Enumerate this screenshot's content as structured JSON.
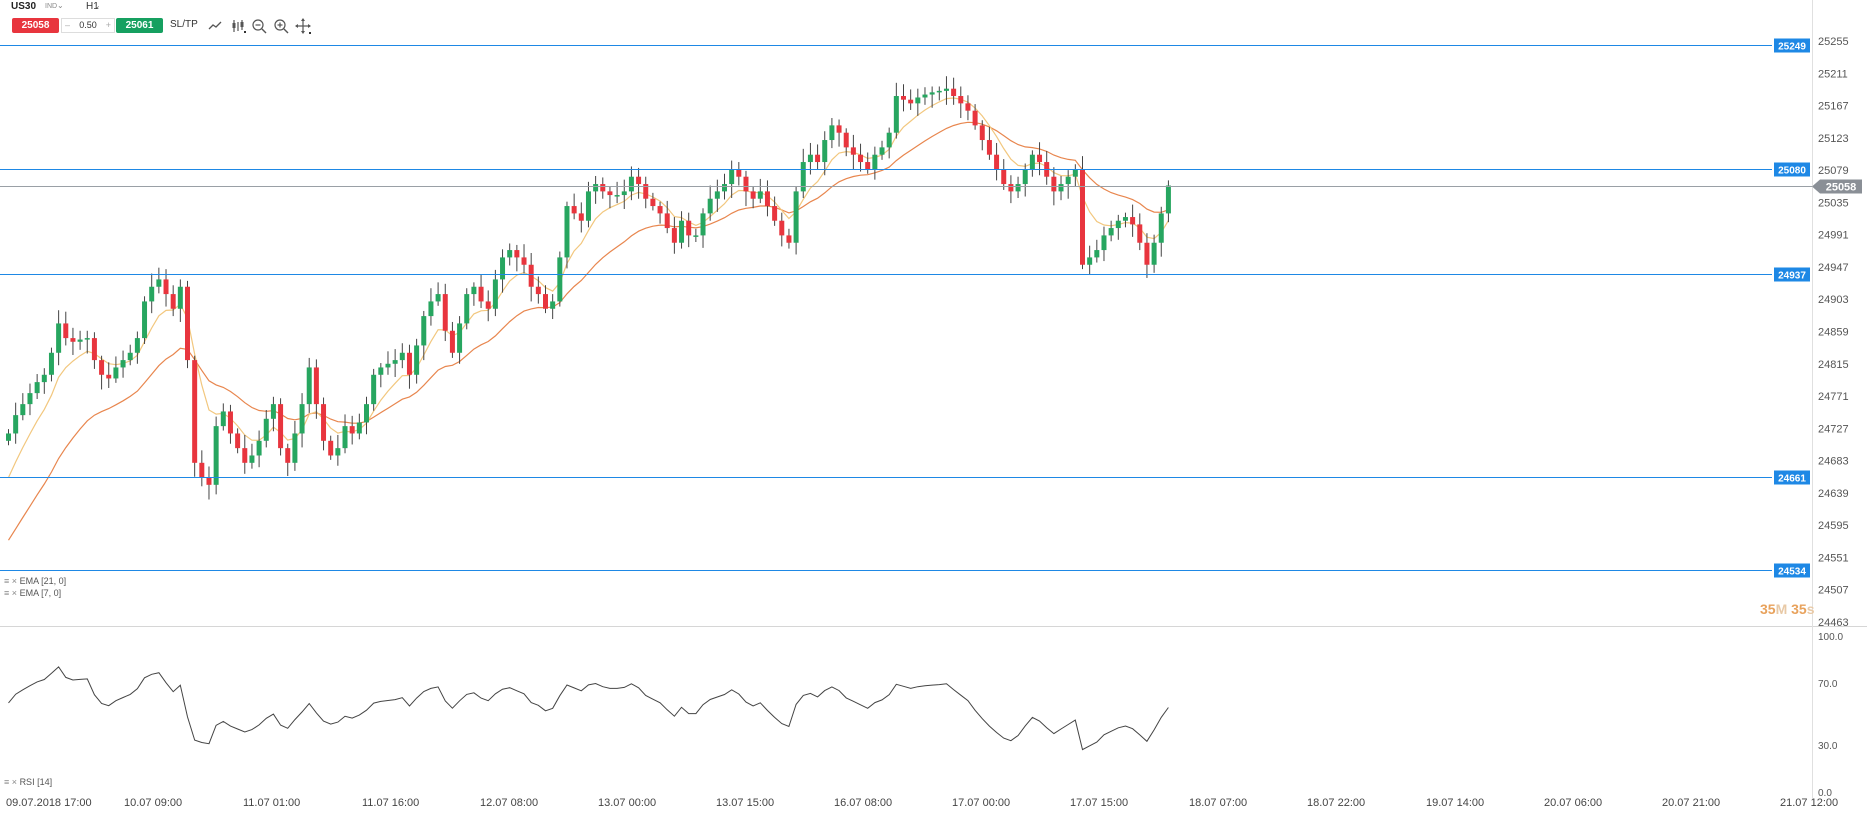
{
  "header": {
    "symbol": "US30",
    "market": "IND",
    "timeframe": "H1",
    "sell_price": "25058",
    "lot_size": "0.50",
    "buy_price": "25061",
    "sltp_label": "SL/TP",
    "lot_minus": "–",
    "lot_plus": "+",
    "caret": "⌄"
  },
  "toolbar_icons": [
    "line-chart-icon",
    "bar-type-icon",
    "zoom-out-icon",
    "zoom-in-icon",
    "crosshair-icon"
  ],
  "price_axis": {
    "labels": [
      "25255",
      "25211",
      "25167",
      "25123",
      "25079",
      "25035",
      "24991",
      "24947",
      "24903",
      "24859",
      "24815",
      "24771",
      "24727",
      "24683",
      "24639",
      "24595",
      "24551",
      "24507",
      "24463"
    ]
  },
  "horizontal_lines": [
    {
      "price": "25249",
      "color": "#1e88e5"
    },
    {
      "price": "25080",
      "color": "#1e88e5"
    },
    {
      "price": "24937",
      "color": "#1e88e5"
    },
    {
      "price": "24661",
      "color": "#1e88e5"
    },
    {
      "price": "24534",
      "color": "#1e88e5"
    }
  ],
  "current_price": {
    "label": "25058",
    "color": "#8a8f96"
  },
  "indicators": {
    "ema21": "EMA [21, 0]",
    "ema7": "EMA [7, 0]",
    "rsi": "RSI [14]"
  },
  "countdown": {
    "minutes": "35",
    "m": "M",
    "seconds": "35",
    "s": "s"
  },
  "rsi_axis": {
    "labels": [
      "100.0",
      "70.0",
      "30.0",
      "0.0"
    ]
  },
  "time_axis": {
    "labels": [
      "09.07.2018 17:00",
      "10.07 09:00",
      "11.07 01:00",
      "11.07 16:00",
      "12.07 08:00",
      "13.07 00:00",
      "13.07 15:00",
      "16.07 08:00",
      "17.07 00:00",
      "17.07 15:00",
      "18.07 07:00",
      "18.07 22:00",
      "19.07 14:00",
      "20.07 06:00",
      "20.07 21:00",
      "21.07 12:00"
    ]
  },
  "colors": {
    "bull": "#27a660",
    "bear": "#e8353e",
    "ema_fast": "#f2c77e",
    "ema_slow": "#e8864e",
    "rsi_line": "#444444",
    "level": "#1e88e5"
  },
  "chart_data": {
    "type": "candlestick",
    "symbol": "US30",
    "timeframe": "H1",
    "price_range": [
      24463,
      25270
    ],
    "closes": [
      24720,
      24745,
      24760,
      24775,
      24790,
      24800,
      24830,
      24870,
      24850,
      24845,
      24848,
      24850,
      24820,
      24800,
      24795,
      24810,
      24820,
      24830,
      24850,
      24900,
      24920,
      24930,
      24910,
      24890,
      24920,
      24820,
      24680,
      24660,
      24650,
      24730,
      24750,
      24720,
      24700,
      24680,
      24690,
      24710,
      24740,
      24760,
      24700,
      24680,
      24720,
      24760,
      24810,
      24760,
      24710,
      24690,
      24700,
      24730,
      24720,
      24735,
      24760,
      24800,
      24810,
      24815,
      24820,
      24830,
      24800,
      24840,
      24880,
      24900,
      24910,
      24860,
      24830,
      24870,
      24910,
      24920,
      24900,
      24890,
      24930,
      24960,
      24970,
      24960,
      24950,
      24920,
      24910,
      24890,
      24900,
      24960,
      25030,
      25020,
      25010,
      25050,
      25060,
      25050,
      25045,
      25045,
      25050,
      25070,
      25060,
      25040,
      25030,
      25020,
      25000,
      24980,
      25010,
      24990,
      24990,
      25020,
      25040,
      25050,
      25060,
      25080,
      25070,
      25050,
      25040,
      25050,
      25030,
      25010,
      24990,
      24980,
      25050,
      25090,
      25100,
      25090,
      25120,
      25140,
      25130,
      25110,
      25100,
      25090,
      25080,
      25100,
      25110,
      25130,
      25180,
      25175,
      25170,
      25178,
      25182,
      25185,
      25187,
      25190,
      25180,
      25170,
      25160,
      25140,
      25120,
      25100,
      25080,
      25060,
      25050,
      25060,
      25080,
      25100,
      25090,
      25070,
      25050,
      25060,
      25070,
      25080,
      24950,
      24960,
      24970,
      24990,
      25000,
      25010,
      25015,
      25005,
      24980,
      24950,
      24980,
      25020,
      25058
    ],
    "ema7_end": 25010,
    "ema21_end": 25020,
    "rsi_current": 52,
    "horizontal_levels": [
      25249,
      25080,
      24937,
      24661,
      24534
    ],
    "current_price": 25058
  }
}
